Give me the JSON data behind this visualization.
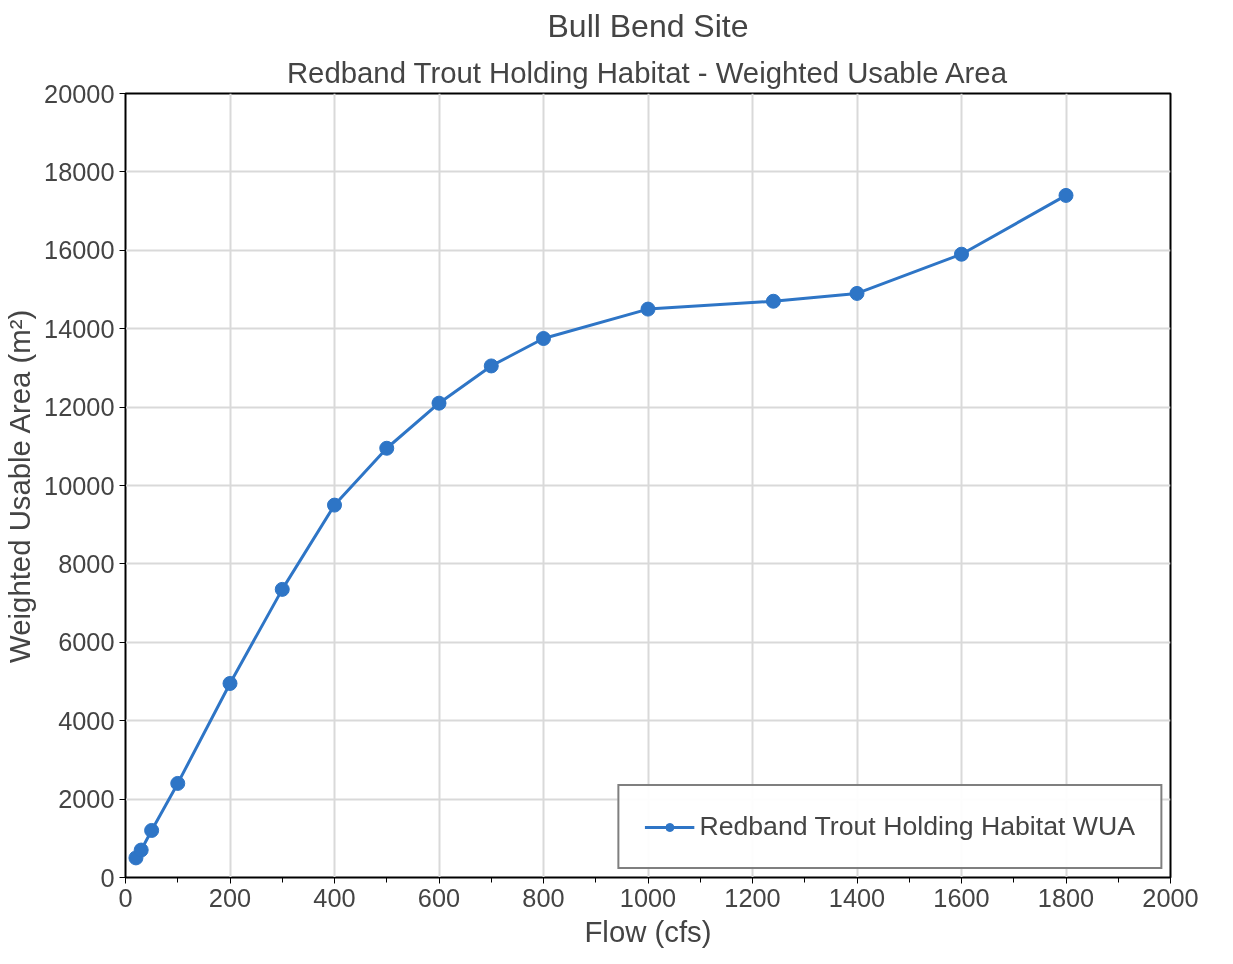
{
  "chart_data": {
    "type": "line",
    "title": "Bull Bend Site",
    "subtitle": "Redband Trout Holding Habitat - Weighted Usable Area",
    "xlabel": "Flow (cfs)",
    "ylabel": "Weighted Usable Area (m²)",
    "x": [
      20,
      30,
      50,
      100,
      200,
      300,
      400,
      500,
      600,
      700,
      800,
      1000,
      1240,
      1400,
      1600,
      1800
    ],
    "series": [
      {
        "name": "Redband Trout Holding Habitat WUA",
        "color": "#2e75c6",
        "values": [
          500,
          700,
          1200,
          2400,
          4950,
          7350,
          9500,
          10950,
          12100,
          13050,
          13750,
          14500,
          14700,
          14900,
          15900,
          17400
        ]
      }
    ],
    "xlim": [
      0,
      2000
    ],
    "xticks": [
      0,
      200,
      400,
      600,
      800,
      1000,
      1200,
      1400,
      1600,
      1800,
      2000
    ],
    "ylim": [
      0,
      20000
    ],
    "yticks": [
      0,
      2000,
      4000,
      6000,
      8000,
      10000,
      12000,
      14000,
      16000,
      18000,
      20000
    ],
    "grid": true,
    "legend": "bottom right",
    "marker": "circle",
    "line_style": "solid"
  }
}
